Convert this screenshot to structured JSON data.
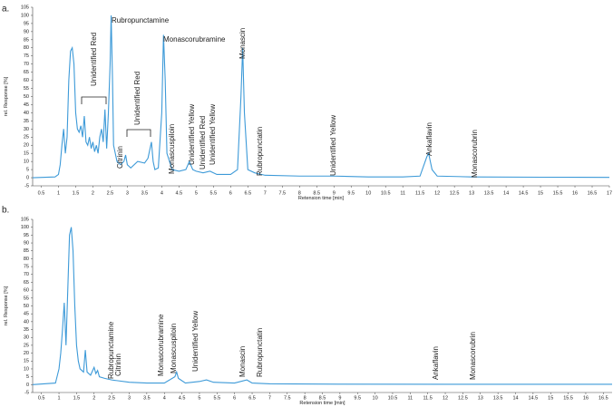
{
  "chart_data": [
    {
      "type": "line",
      "label": "a.",
      "y_label": "rel. Response [%]",
      "x_label": "Retension time [min]",
      "xlim": [
        0.25,
        17
      ],
      "ylim": [
        -5,
        105
      ],
      "xticks": [
        0.5,
        1,
        1.5,
        2,
        2.5,
        3,
        3.5,
        4,
        4.5,
        5,
        5.5,
        6,
        6.5,
        7,
        7.5,
        8,
        8.5,
        9,
        9.5,
        10,
        10.5,
        11,
        11.5,
        12,
        12.5,
        13,
        13.5,
        14,
        14.5,
        15,
        15.5,
        16,
        16.5,
        17
      ],
      "yticks": [
        -5,
        0,
        5,
        10,
        15,
        20,
        25,
        30,
        35,
        40,
        45,
        50,
        55,
        60,
        65,
        70,
        75,
        80,
        85,
        90,
        95,
        100,
        105
      ],
      "x": [
        0.25,
        0.9,
        1.0,
        1.05,
        1.1,
        1.15,
        1.2,
        1.25,
        1.3,
        1.35,
        1.4,
        1.45,
        1.5,
        1.55,
        1.6,
        1.65,
        1.7,
        1.75,
        1.8,
        1.85,
        1.9,
        1.95,
        2.0,
        2.05,
        2.1,
        2.15,
        2.2,
        2.25,
        2.3,
        2.35,
        2.4,
        2.45,
        2.5,
        2.53,
        2.57,
        2.6,
        2.7,
        2.8,
        2.9,
        2.95,
        3.0,
        3.1,
        3.3,
        3.5,
        3.6,
        3.7,
        3.75,
        3.8,
        3.9,
        4.0,
        4.05,
        4.1,
        4.15,
        4.3,
        4.5,
        4.7,
        4.8,
        4.9,
        5.0,
        5.2,
        5.4,
        5.6,
        5.8,
        6.0,
        6.2,
        6.3,
        6.35,
        6.4,
        6.5,
        6.7,
        7.0,
        8.0,
        9.0,
        10.0,
        11.0,
        11.5,
        11.7,
        11.75,
        11.85,
        12.0,
        13.0,
        15.0,
        17
      ],
      "series": [
        {
          "color": "#3d9ad8",
          "values": [
            0,
            0.5,
            2,
            8,
            20,
            30,
            15,
            25,
            60,
            78,
            80,
            70,
            40,
            30,
            28,
            32,
            25,
            38,
            22,
            20,
            25,
            18,
            22,
            16,
            20,
            15,
            25,
            30,
            22,
            42,
            18,
            40,
            70,
            100,
            60,
            20,
            10,
            8,
            10,
            14,
            8,
            6,
            10,
            9,
            12,
            22,
            10,
            5,
            6,
            40,
            88,
            60,
            15,
            5,
            4,
            5,
            10,
            5,
            4,
            3,
            4,
            2,
            2,
            2,
            5,
            50,
            80,
            40,
            5,
            3,
            1.5,
            1,
            1,
            0.5,
            0.5,
            1,
            13,
            15,
            5,
            1,
            0.5,
            0.3,
            0.2
          ]
        }
      ],
      "annotations": [
        {
          "text": "Rubropunctamine",
          "color": "#222"
        },
        {
          "text": "Monascorubramine",
          "color": "#222"
        },
        {
          "text": "Monascin",
          "color": "#222"
        },
        {
          "text": "Unidentified Red",
          "color": "#222"
        },
        {
          "text": "Unidentified Red",
          "color": "#222"
        },
        {
          "text": "Citrinin",
          "color": "#222"
        },
        {
          "text": "Monascuspiloin",
          "color": "#aaa"
        },
        {
          "text": "Unidentified Yellow",
          "color": "#222"
        },
        {
          "text": "Unidentified Red",
          "color": "#222"
        },
        {
          "text": "Unidentified Yellow",
          "color": "#222"
        },
        {
          "text": "Rubropunctatin",
          "color": "#aaa"
        },
        {
          "text": "Unidentified Yellow",
          "color": "#222"
        },
        {
          "text": "Ankaflavin",
          "color": "#222"
        },
        {
          "text": "Monascorubrin",
          "color": "#aaa"
        }
      ]
    },
    {
      "type": "line",
      "label": "b.",
      "y_label": "rel. Response [%]",
      "x_label": "Retension time [min]",
      "xlim": [
        0.25,
        16.75
      ],
      "ylim": [
        -5,
        105
      ],
      "xticks": [
        0.5,
        1,
        1.5,
        2,
        2.5,
        3,
        3.5,
        4,
        4.5,
        5,
        5.5,
        6,
        6.5,
        7,
        7.5,
        8,
        8.5,
        9,
        9.5,
        10,
        10.5,
        11,
        11.5,
        12,
        12.5,
        13,
        13.5,
        14,
        14.5,
        15,
        15.5,
        16,
        16.5
      ],
      "yticks": [
        -5,
        0,
        5,
        10,
        15,
        20,
        25,
        30,
        35,
        40,
        45,
        50,
        55,
        60,
        65,
        70,
        75,
        80,
        85,
        90,
        95,
        100,
        105
      ],
      "x": [
        0.25,
        0.9,
        1.0,
        1.05,
        1.1,
        1.15,
        1.2,
        1.25,
        1.3,
        1.35,
        1.4,
        1.45,
        1.5,
        1.55,
        1.6,
        1.7,
        1.75,
        1.8,
        1.9,
        2.0,
        2.05,
        2.1,
        2.15,
        2.3,
        2.5,
        3.0,
        3.5,
        4.0,
        4.3,
        4.35,
        4.4,
        4.6,
        5.0,
        5.2,
        5.4,
        6.0,
        6.35,
        6.5,
        7,
        9,
        12,
        16.75
      ],
      "series": [
        {
          "color": "#3d9ad8",
          "values": [
            0,
            1,
            10,
            20,
            35,
            52,
            25,
            60,
            95,
            100,
            85,
            50,
            25,
            15,
            10,
            8,
            22,
            8,
            6,
            11,
            7,
            9,
            5,
            4,
            3,
            1.5,
            1,
            1,
            5,
            8,
            4,
            1,
            2,
            3,
            1.5,
            1,
            3,
            1,
            0.5,
            0.3,
            0.2,
            0.2
          ]
        }
      ],
      "annotations": [
        {
          "text": "Rubropunctamine",
          "color": "#222"
        },
        {
          "text": "Citrinin",
          "color": "#aaa"
        },
        {
          "text": "Monascorubramine",
          "color": "#aaa"
        },
        {
          "text": "Monascuspiloin",
          "color": "#222"
        },
        {
          "text": "Unidentified Yellow",
          "color": "#222"
        },
        {
          "text": "Monascin",
          "color": "#222"
        },
        {
          "text": "Rubropunctatin",
          "color": "#aaa"
        },
        {
          "text": "Ankaflavin",
          "color": "#aaa"
        },
        {
          "text": "Monascorubrin",
          "color": "#aaa"
        }
      ]
    }
  ]
}
